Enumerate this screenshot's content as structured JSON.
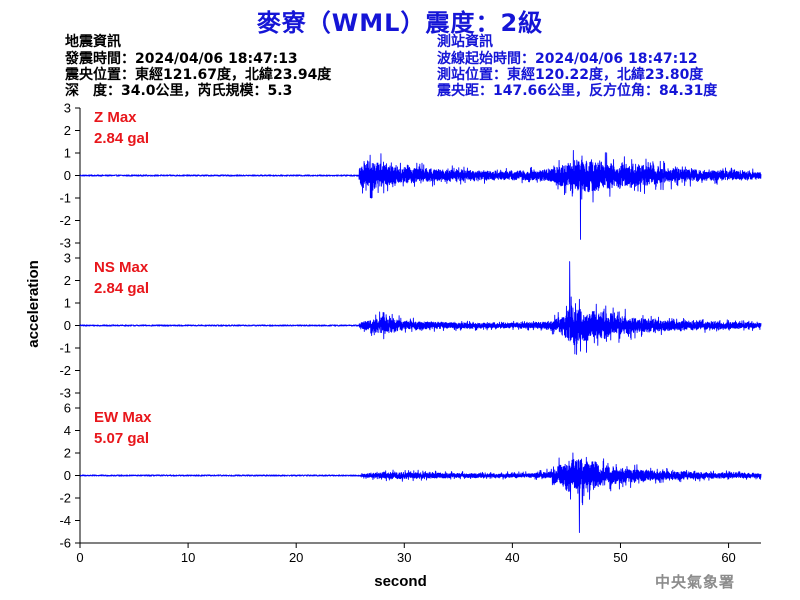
{
  "title": "麥寮（WML）震度：2級",
  "earthquake_info": {
    "heading": "地震資訊",
    "origin_time": "發震時間：2024/04/06 18:47:13",
    "epicenter": "震央位置：東經121.67度，北緯23.94度",
    "depth_magnitude": "深　度：34.0公里，芮氏規模：5.3"
  },
  "station_info": {
    "heading": "測站資訊",
    "waveform_start": "波線起始時間：2024/04/06 18:47:12",
    "station_location": "測站位置：東經120.22度，北緯23.80度",
    "epicentral_distance": "震央距：147.66公里，反方位角：84.31度"
  },
  "agency": "中央氣象署",
  "colors": {
    "trace": "#0000ff",
    "panel_label": "#e8161b",
    "title": "#1515d6",
    "agency": "#8c8c8c"
  },
  "chart_data": {
    "type": "line",
    "xlabel": "second",
    "ylabel": "acceleration",
    "xlim": [
      0,
      63
    ],
    "x_ticks": [
      "0",
      "10",
      "20",
      "30",
      "40",
      "50",
      "60"
    ],
    "panels": [
      {
        "name": "Z Max",
        "max_text": "2.84 gal",
        "ylim": [
          -3,
          3
        ],
        "y_ticks": [
          "3",
          "2",
          "1",
          "0",
          "-1",
          "-2",
          "-3"
        ],
        "p_arrival_s": 25.8,
        "noise_level": 0.03,
        "envelope": [
          [
            0,
            0.03
          ],
          [
            25.6,
            0.03
          ],
          [
            25.9,
            0.9
          ],
          [
            26.5,
            1.8
          ],
          [
            27.5,
            1.5
          ],
          [
            29,
            1.0
          ],
          [
            32,
            0.8
          ],
          [
            36,
            0.55
          ],
          [
            40,
            0.5
          ],
          [
            43,
            0.6
          ],
          [
            44.5,
            1.2
          ],
          [
            46,
            1.8
          ],
          [
            47.5,
            1.8
          ],
          [
            49,
            1.4
          ],
          [
            52,
            1.2
          ],
          [
            55,
            0.8
          ],
          [
            58,
            0.6
          ],
          [
            63,
            0.4
          ]
        ],
        "peak": {
          "t": 46.3,
          "value": -2.84
        }
      },
      {
        "name": "NS Max",
        "max_text": "2.84 gal",
        "ylim": [
          -3,
          3
        ],
        "y_ticks": [
          "3",
          "2",
          "1",
          "0",
          "-1",
          "-2",
          "-3"
        ],
        "p_arrival_s": 25.8,
        "noise_level": 0.03,
        "envelope": [
          [
            0,
            0.03
          ],
          [
            25.6,
            0.03
          ],
          [
            26,
            0.4
          ],
          [
            27.5,
            0.8
          ],
          [
            28.2,
            1.0
          ],
          [
            30,
            0.5
          ],
          [
            34,
            0.35
          ],
          [
            38,
            0.3
          ],
          [
            41,
            0.3
          ],
          [
            43,
            0.4
          ],
          [
            44.5,
            0.9
          ],
          [
            45.3,
            2.0
          ],
          [
            46.5,
            1.9
          ],
          [
            48,
            1.5
          ],
          [
            50,
            1.1
          ],
          [
            53,
            0.7
          ],
          [
            56,
            0.5
          ],
          [
            60,
            0.4
          ],
          [
            63,
            0.3
          ]
        ],
        "peak": {
          "t": 45.3,
          "value": 2.84
        }
      },
      {
        "name": "EW Max",
        "max_text": "5.07 gal",
        "ylim": [
          -6,
          6
        ],
        "y_ticks": [
          "6",
          "4",
          "2",
          "0",
          "-2",
          "-4",
          "-6"
        ],
        "p_arrival_s": 26.0,
        "noise_level": 0.06,
        "envelope": [
          [
            0,
            0.06
          ],
          [
            25.8,
            0.06
          ],
          [
            26.2,
            0.4
          ],
          [
            28.5,
            0.8
          ],
          [
            31,
            0.7
          ],
          [
            35,
            0.5
          ],
          [
            39,
            0.45
          ],
          [
            42,
            0.5
          ],
          [
            43.5,
            0.9
          ],
          [
            45,
            3.5
          ],
          [
            46.2,
            4.0
          ],
          [
            47.5,
            3.0
          ],
          [
            49,
            2.0
          ],
          [
            52,
            1.3
          ],
          [
            55,
            0.9
          ],
          [
            58,
            0.7
          ],
          [
            63,
            0.5
          ]
        ],
        "peak": {
          "t": 46.2,
          "value": -5.07
        }
      }
    ]
  }
}
